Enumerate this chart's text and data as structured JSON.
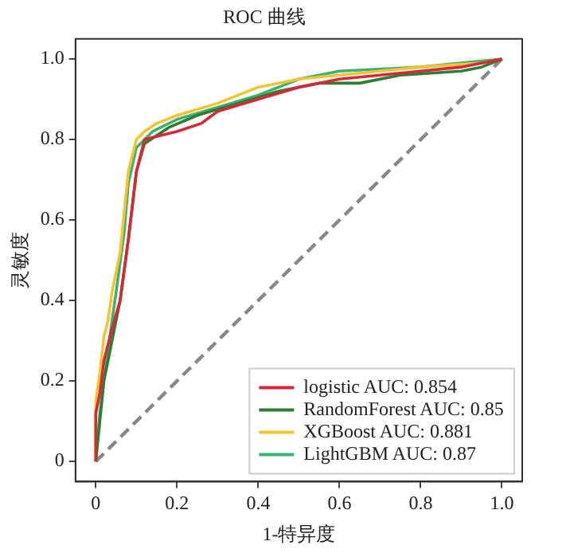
{
  "chart_data": {
    "type": "line",
    "title": "ROC 曲线",
    "xlabel": "1-特异度",
    "ylabel": "灵敏度",
    "xlim": [
      -0.05,
      1.05
    ],
    "ylim": [
      -0.05,
      1.05
    ],
    "xticks": [
      0,
      0.2,
      0.4,
      0.6,
      0.8,
      {
        "value": 1,
        "label": "1.0"
      }
    ],
    "yticks": [
      0,
      0.2,
      0.4,
      0.6,
      0.8,
      {
        "value": 1,
        "label": "1.0"
      }
    ],
    "grid": false,
    "legend": "bottom right",
    "series": [
      {
        "name": "logistic AUC: 0.854",
        "color": "#d62839",
        "x": [
          0,
          0,
          0.01,
          0.02,
          0.04,
          0.06,
          0.08,
          0.1,
          0.12,
          0.16,
          0.2,
          0.26,
          0.3,
          0.4,
          0.5,
          0.6,
          0.7,
          0.8,
          0.9,
          1
        ],
        "values": [
          0,
          0.12,
          0.17,
          0.25,
          0.33,
          0.4,
          0.55,
          0.72,
          0.8,
          0.81,
          0.82,
          0.84,
          0.87,
          0.9,
          0.93,
          0.95,
          0.96,
          0.97,
          0.98,
          1
        ]
      },
      {
        "name": "RandomForest AUC: 0.85",
        "color": "#2e7d32",
        "x": [
          0,
          0.01,
          0.02,
          0.04,
          0.06,
          0.08,
          0.1,
          0.12,
          0.18,
          0.25,
          0.35,
          0.45,
          0.55,
          0.65,
          0.75,
          0.9,
          0.95,
          1
        ],
        "values": [
          0,
          0.1,
          0.2,
          0.3,
          0.4,
          0.55,
          0.72,
          0.79,
          0.83,
          0.86,
          0.89,
          0.92,
          0.94,
          0.94,
          0.96,
          0.97,
          0.98,
          1
        ]
      },
      {
        "name": "XGBoost AUC: 0.881",
        "color": "#f4c430",
        "x": [
          0,
          0,
          0.01,
          0.02,
          0.03,
          0.04,
          0.06,
          0.08,
          0.1,
          0.12,
          0.15,
          0.2,
          0.3,
          0.4,
          0.5,
          0.6,
          0.8,
          0.95,
          1
        ],
        "values": [
          0,
          0.15,
          0.22,
          0.31,
          0.35,
          0.42,
          0.52,
          0.72,
          0.8,
          0.82,
          0.84,
          0.86,
          0.89,
          0.93,
          0.95,
          0.96,
          0.98,
          0.99,
          1
        ]
      },
      {
        "name": "LightGBM AUC: 0.87",
        "color": "#3cb371",
        "x": [
          0,
          0.01,
          0.02,
          0.04,
          0.05,
          0.07,
          0.08,
          0.1,
          0.14,
          0.2,
          0.3,
          0.4,
          0.5,
          0.6,
          0.8,
          1
        ],
        "values": [
          0,
          0.12,
          0.2,
          0.35,
          0.42,
          0.57,
          0.69,
          0.78,
          0.82,
          0.85,
          0.88,
          0.91,
          0.95,
          0.97,
          0.98,
          1
        ]
      },
      {
        "color": "#888888",
        "line_style": "dashed",
        "x": [
          0,
          1
        ],
        "values": [
          0,
          1
        ]
      }
    ]
  }
}
